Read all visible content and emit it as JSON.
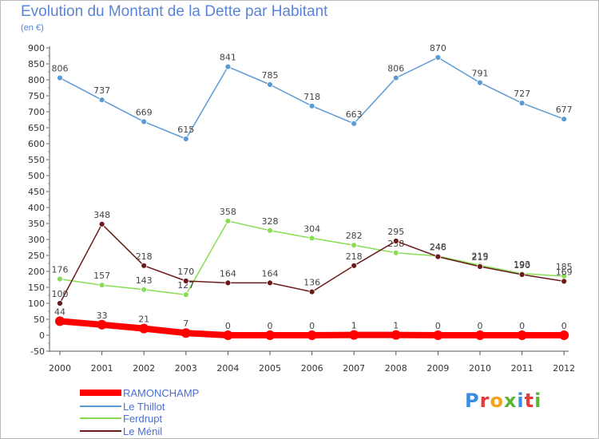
{
  "title": "Evolution du Montant de la Dette par Habitant",
  "subtitle": "(en €)",
  "logo_text": "Proxiti",
  "chart_data": {
    "type": "line",
    "title": "Evolution du Montant de la Dette par Habitant",
    "subtitle": "(en €)",
    "xlabel": "",
    "ylabel": "",
    "categories": [
      "2000",
      "2001",
      "2002",
      "2003",
      "2004",
      "2005",
      "2006",
      "2007",
      "2008",
      "2009",
      "2010",
      "2011",
      "2012"
    ],
    "ylim": [
      -50,
      900
    ],
    "yticks": [
      -50,
      0,
      50,
      100,
      150,
      200,
      250,
      300,
      350,
      400,
      450,
      500,
      550,
      600,
      650,
      700,
      750,
      800,
      850,
      900
    ],
    "grid": false,
    "legend_position": "bottom-left",
    "series": [
      {
        "name": "RAMONCHAMP",
        "color": "#ff0000",
        "values": [
          44,
          33,
          21,
          7,
          0,
          0,
          0,
          1,
          1,
          0,
          0,
          0,
          0
        ]
      },
      {
        "name": "Le Thillot",
        "color": "#5b9bd5",
        "values": [
          806,
          737,
          669,
          615,
          841,
          785,
          718,
          663,
          806,
          870,
          791,
          727,
          677
        ]
      },
      {
        "name": "Ferdrupt",
        "color": "#88dd55",
        "values": [
          176,
          157,
          143,
          127,
          358,
          328,
          304,
          282,
          258,
          248,
          219,
          193,
          185
        ]
      },
      {
        "name": "Le Ménil",
        "color": "#6b1a1a",
        "values": [
          100,
          348,
          218,
          170,
          164,
          164,
          136,
          218,
          295,
          246,
          215,
          190,
          169
        ]
      }
    ]
  }
}
